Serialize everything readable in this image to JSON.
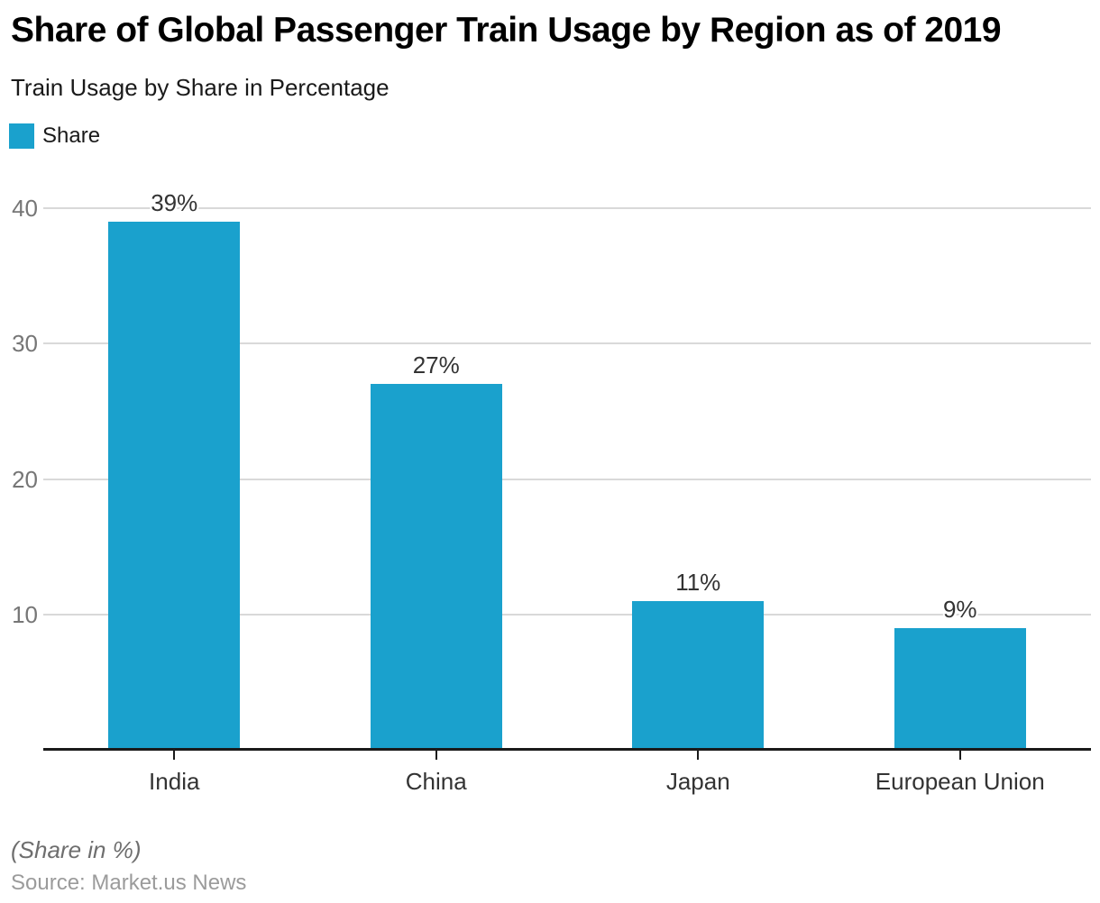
{
  "chart_data": {
    "type": "bar",
    "title": "Share of Global Passenger Train Usage by Region as of 2019",
    "subtitle": "Train Usage by Share in Percentage",
    "categories": [
      "India",
      "China",
      "Japan",
      "European Union"
    ],
    "series": [
      {
        "name": "Share",
        "values": [
          39,
          27,
          11,
          9
        ],
        "color": "#1aa1cd"
      }
    ],
    "data_labels": [
      "39%",
      "27%",
      "11%",
      "9%"
    ],
    "yticks": [
      10,
      20,
      30,
      40
    ],
    "ylim": [
      0,
      40
    ],
    "grid": "horizontal-only",
    "legend_position": "top-left",
    "footnote": "(Share in %)",
    "source": "Source: Market.us News"
  },
  "colors": {
    "bar": "#1aa1cd",
    "gridline": "#d9d9d9",
    "axis": "#1a1a1a",
    "ytick_text": "#767676",
    "label_text": "#333333",
    "title_text": "#000000",
    "subtitle_text": "#1a1a1a",
    "footnote_text": "#6e6e6e",
    "source_text": "#9b9b9b"
  }
}
